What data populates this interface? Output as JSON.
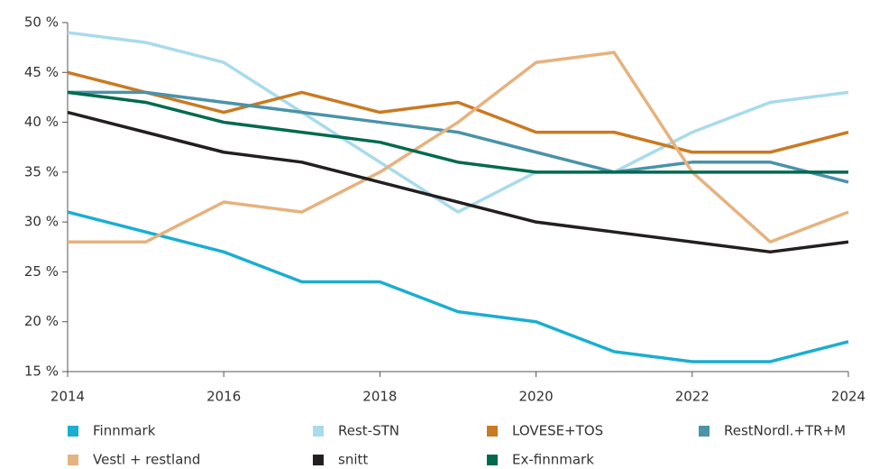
{
  "chart_data": {
    "type": "line",
    "x": [
      2014,
      2015,
      2016,
      2017,
      2018,
      2019,
      2020,
      2021,
      2022,
      2023,
      2024
    ],
    "series": [
      {
        "name": "Finnmark",
        "color": "#1aaed1",
        "values": [
          31,
          29,
          27,
          24,
          24,
          21,
          20,
          17,
          16,
          16,
          18
        ]
      },
      {
        "name": "Rest-STN",
        "color": "#a8dbeb",
        "values": [
          49,
          48,
          46,
          41,
          36,
          31,
          35,
          35,
          39,
          42,
          43
        ]
      },
      {
        "name": "LOVESE+TOS",
        "color": "#c97a22",
        "values": [
          45,
          43,
          41,
          43,
          41,
          42,
          39,
          39,
          37,
          37,
          39
        ]
      },
      {
        "name": "RestNordl.+TR+M",
        "color": "#4a93a8",
        "values": [
          43,
          43,
          42,
          41,
          40,
          39,
          37,
          35,
          36,
          36,
          34
        ]
      },
      {
        "name": "Vestl + restland",
        "color": "#e6b27e",
        "values": [
          28,
          28,
          32,
          31,
          35,
          40,
          46,
          47,
          35,
          28,
          31
        ]
      },
      {
        "name": "snitt",
        "color": "#231f20",
        "values": [
          41,
          39,
          37,
          36,
          34,
          32,
          30,
          29,
          28,
          27,
          28
        ]
      },
      {
        "name": "Ex-finnmark",
        "color": "#006a4e",
        "values": [
          43,
          42,
          40,
          39,
          38,
          36,
          35,
          35,
          35,
          35,
          35
        ]
      }
    ],
    "xlim": [
      2014,
      2024
    ],
    "xticks": [
      2014,
      2016,
      2018,
      2020,
      2022,
      2024
    ],
    "ylim": [
      15,
      50
    ],
    "yticks": [
      {
        "value": 15,
        "label": "15 %"
      },
      {
        "value": 20,
        "label": "20 %"
      },
      {
        "value": 25,
        "label": "25 %"
      },
      {
        "value": 30,
        "label": "30 %"
      },
      {
        "value": 35,
        "label": "35 %"
      },
      {
        "value": 40,
        "label": "40 %"
      },
      {
        "value": 45,
        "label": "45 %"
      },
      {
        "value": 50,
        "label": "50 %"
      }
    ],
    "legend": "bottom"
  }
}
